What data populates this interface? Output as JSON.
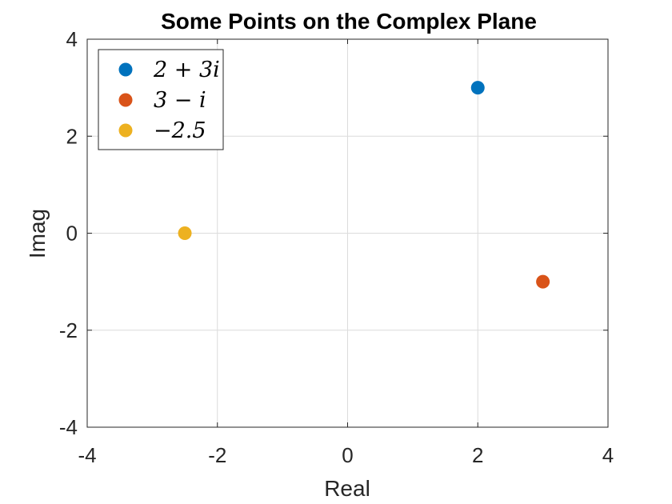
{
  "chart_data": {
    "type": "scatter",
    "title": "Some Points on the Complex Plane",
    "xlabel": "Real",
    "ylabel": "Imag",
    "xlim": [
      -4,
      4
    ],
    "ylim": [
      -4,
      4
    ],
    "xticks": [
      -4,
      -2,
      0,
      2,
      4
    ],
    "yticks": [
      -4,
      -2,
      0,
      2,
      4
    ],
    "xtick_labels": [
      "-4",
      "-2",
      "0",
      "2",
      "4"
    ],
    "ytick_labels": [
      "-4",
      "-2",
      "0",
      "2",
      "4"
    ],
    "grid": true,
    "legend_position": "top-left",
    "series": [
      {
        "name": "2 + 3i",
        "x": [
          2
        ],
        "y": [
          3
        ],
        "color": "#0072BD"
      },
      {
        "name": "3 − i",
        "x": [
          3
        ],
        "y": [
          -1
        ],
        "color": "#D95319"
      },
      {
        "name": "−2.5",
        "x": [
          -2.5
        ],
        "y": [
          0
        ],
        "color": "#EDB120"
      }
    ]
  }
}
